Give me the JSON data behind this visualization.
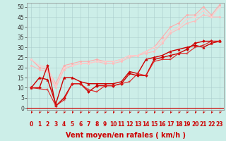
{
  "xlabel": "Vent moyen/en rafales ( km/h )",
  "background_color": "#cceee8",
  "grid_color": "#aacccc",
  "xlim": [
    -0.5,
    23.5
  ],
  "ylim": [
    -1,
    52
  ],
  "xticks": [
    0,
    1,
    2,
    3,
    4,
    5,
    6,
    7,
    8,
    9,
    10,
    11,
    12,
    13,
    14,
    15,
    16,
    17,
    18,
    19,
    20,
    21,
    22,
    23
  ],
  "yticks": [
    0,
    5,
    10,
    15,
    20,
    25,
    30,
    35,
    40,
    45,
    50
  ],
  "lines": [
    {
      "x": [
        0,
        1,
        2,
        3,
        4,
        5,
        6,
        7,
        8,
        9,
        10,
        11,
        12,
        13,
        14,
        15,
        16,
        17,
        18,
        19,
        20,
        21,
        22,
        23
      ],
      "y": [
        24,
        20,
        19,
        12,
        21,
        22,
        23,
        23,
        24,
        23,
        23,
        24,
        26,
        26,
        28,
        30,
        35,
        40,
        42,
        46,
        46,
        50,
        46,
        51
      ],
      "color": "#ffaaaa",
      "lw": 0.8,
      "marker": "o",
      "ms": 1.8
    },
    {
      "x": [
        0,
        1,
        2,
        3,
        4,
        5,
        6,
        7,
        8,
        9,
        10,
        11,
        12,
        13,
        14,
        15,
        16,
        17,
        18,
        19,
        20,
        21,
        22,
        23
      ],
      "y": [
        21,
        19,
        18,
        10,
        19,
        21,
        22,
        22,
        23,
        22,
        22,
        23,
        25,
        26,
        27,
        28,
        32,
        37,
        39,
        42,
        43,
        46,
        45,
        45
      ],
      "color": "#ffbbbb",
      "lw": 0.8,
      "marker": "o",
      "ms": 1.8
    },
    {
      "x": [
        0,
        1,
        2,
        3,
        4,
        5,
        6,
        7,
        8,
        9,
        10,
        11,
        12,
        13,
        14,
        15,
        16,
        17,
        18,
        19,
        20,
        21,
        22,
        23
      ],
      "y": [
        24,
        21,
        20,
        11,
        20,
        21,
        22,
        22,
        23,
        23,
        23,
        24,
        26,
        26,
        28,
        30,
        33,
        38,
        40,
        44,
        45,
        48,
        45,
        50
      ],
      "color": "#ffcccc",
      "lw": 0.8,
      "marker": "o",
      "ms": 1.5
    },
    {
      "x": [
        0,
        1,
        2,
        3,
        4,
        5,
        6,
        7,
        8,
        9,
        10,
        11,
        12,
        13,
        14,
        15,
        16,
        17,
        18,
        19,
        20,
        21,
        22,
        23
      ],
      "y": [
        10,
        15,
        14,
        2,
        15,
        15,
        13,
        12,
        12,
        12,
        12,
        13,
        18,
        17,
        24,
        25,
        26,
        28,
        29,
        30,
        31,
        30,
        32,
        33
      ],
      "color": "#cc0000",
      "lw": 1.0,
      "marker": "^",
      "ms": 2.5
    },
    {
      "x": [
        0,
        1,
        2,
        3,
        4,
        5,
        6,
        7,
        8,
        9,
        10,
        11,
        12,
        13,
        14,
        15,
        16,
        17,
        18,
        19,
        20,
        21,
        22,
        23
      ],
      "y": [
        10,
        10,
        21,
        1,
        5,
        12,
        12,
        8,
        11,
        11,
        11,
        12,
        17,
        16,
        16,
        24,
        25,
        26,
        27,
        29,
        32,
        33,
        33,
        33
      ],
      "color": "#cc0000",
      "lw": 1.0,
      "marker": "D",
      "ms": 2.0
    },
    {
      "x": [
        0,
        2,
        3,
        4,
        5,
        6,
        7,
        8,
        9,
        10,
        11,
        12,
        13,
        14,
        15,
        16,
        17,
        18,
        19,
        20,
        21,
        22,
        23
      ],
      "y": [
        10,
        9,
        1,
        4,
        12,
        12,
        9,
        8,
        11,
        11,
        12,
        13,
        17,
        16,
        23,
        24,
        24,
        27,
        27,
        30,
        31,
        33,
        33
      ],
      "color": "#dd2222",
      "lw": 0.8,
      "marker": "+",
      "ms": 3.0
    }
  ],
  "arrow_color": "#cc0000",
  "xlabel_color": "#cc0000",
  "xlabel_fontsize": 7,
  "tick_fontsize": 5.5
}
